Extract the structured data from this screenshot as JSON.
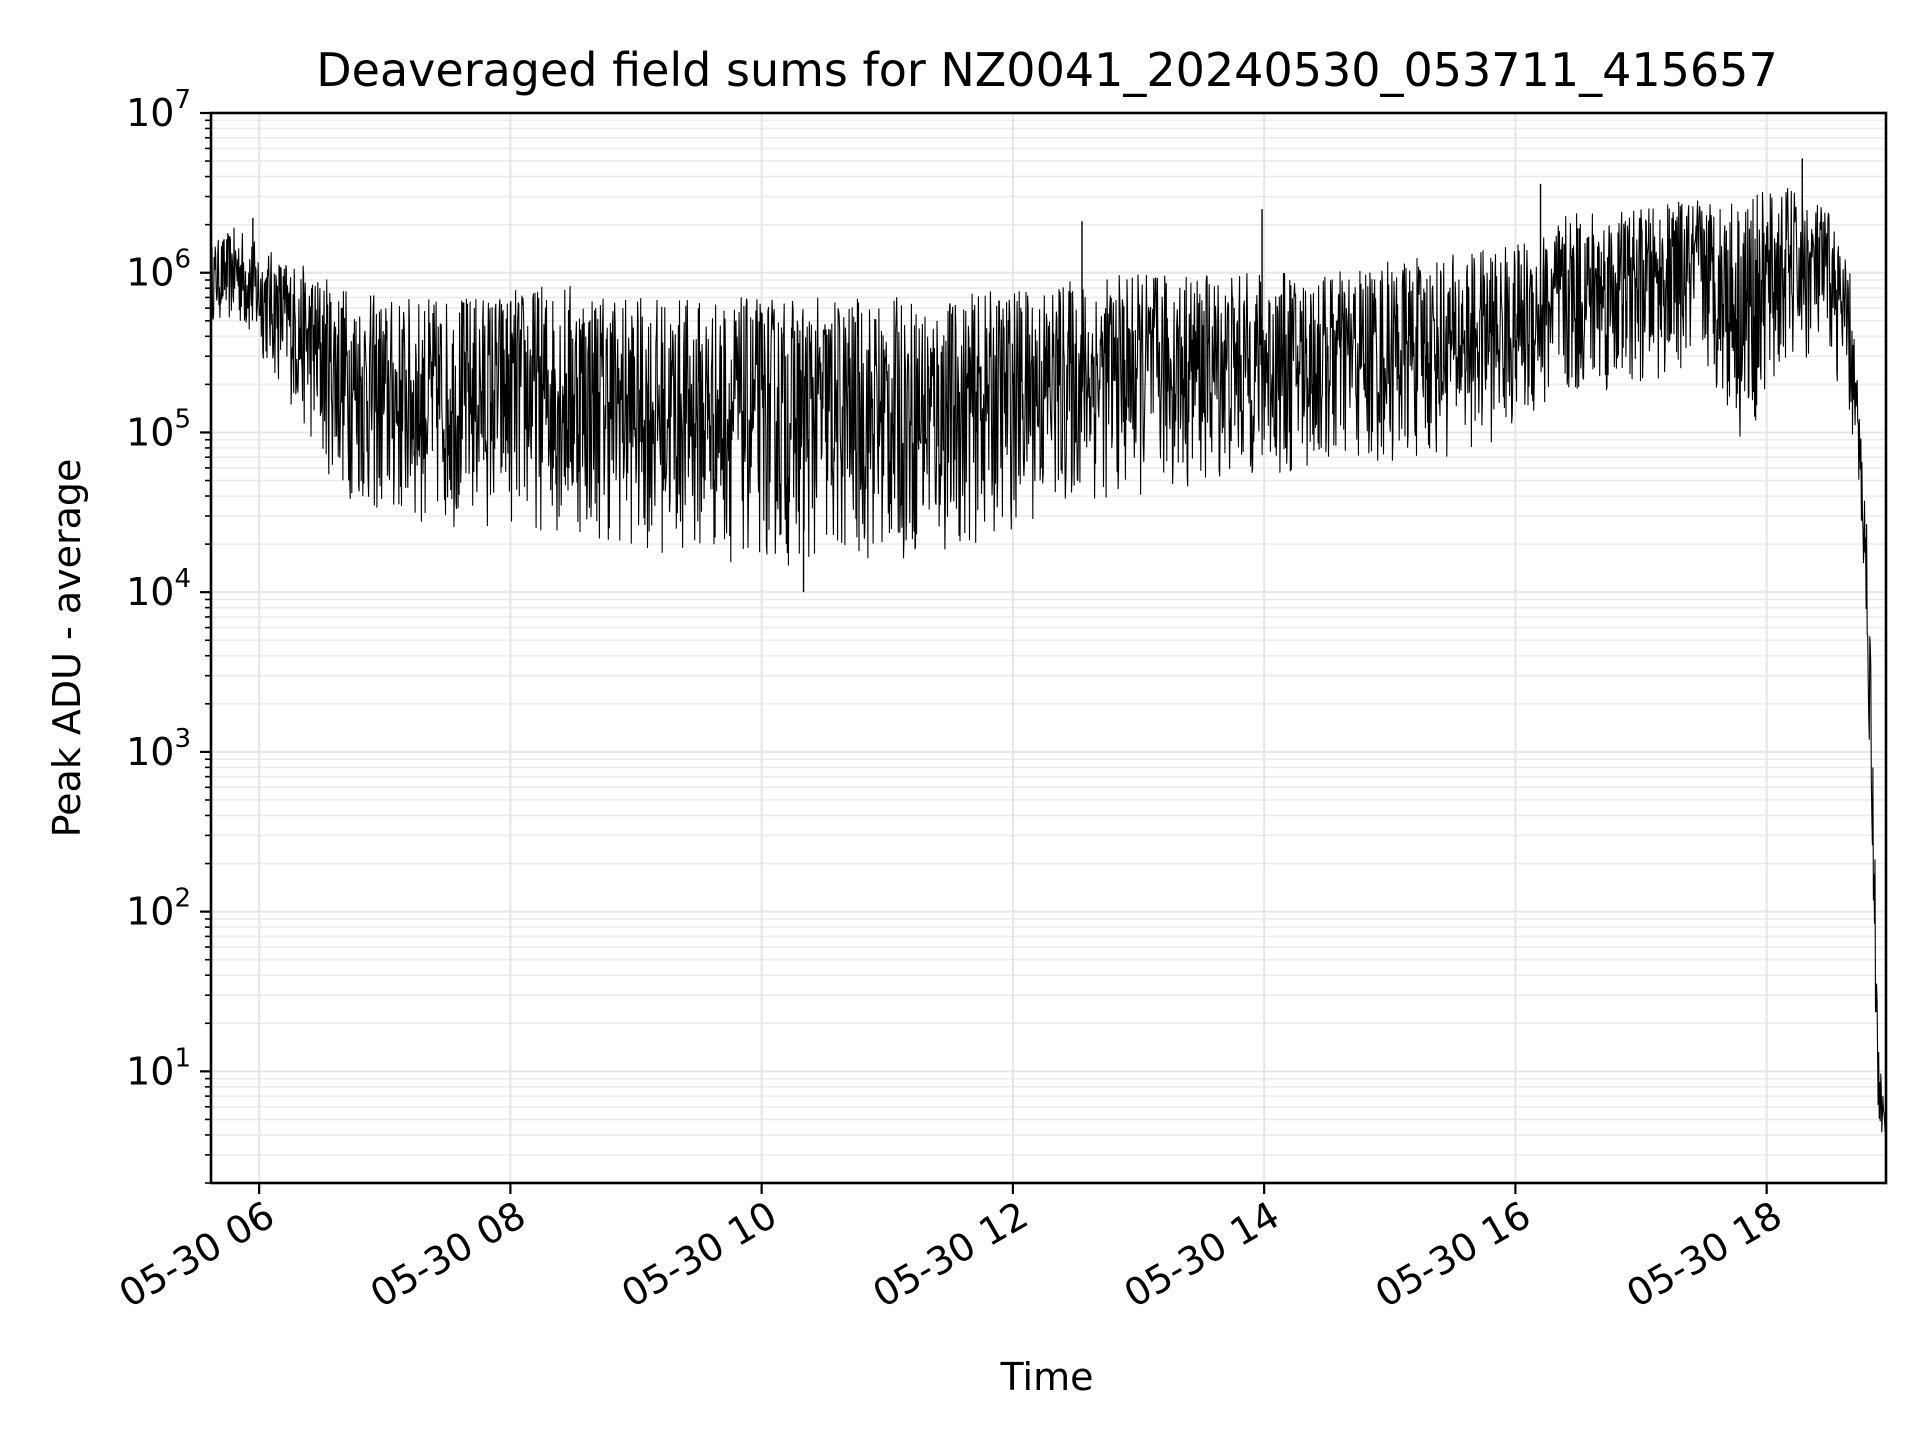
{
  "chart_data": {
    "type": "line",
    "title": "Deaveraged field sums for NZ0041_20240530_053711_415657",
    "xlabel": "Time",
    "ylabel": "Peak ADU - average",
    "yscale": "log",
    "ylim": [
      2,
      10000000
    ],
    "xlim": [
      "2024-05-30 05:37",
      "2024-05-30 18:57"
    ],
    "grid": true,
    "line_color": "#000000",
    "x_ticks": [
      {
        "value": "2024-05-30 06:00",
        "label": "05-30 06"
      },
      {
        "value": "2024-05-30 08:00",
        "label": "05-30 08"
      },
      {
        "value": "2024-05-30 10:00",
        "label": "05-30 10"
      },
      {
        "value": "2024-05-30 12:00",
        "label": "05-30 12"
      },
      {
        "value": "2024-05-30 14:00",
        "label": "05-30 14"
      },
      {
        "value": "2024-05-30 16:00",
        "label": "05-30 16"
      },
      {
        "value": "2024-05-30 18:00",
        "label": "05-30 18"
      }
    ],
    "y_ticks": [
      {
        "value": 10,
        "base": "10",
        "exp": "1"
      },
      {
        "value": 100,
        "base": "10",
        "exp": "2"
      },
      {
        "value": 1000,
        "base": "10",
        "exp": "3"
      },
      {
        "value": 10000,
        "base": "10",
        "exp": "4"
      },
      {
        "value": 100000,
        "base": "10",
        "exp": "5"
      },
      {
        "value": 1000000,
        "base": "10",
        "exp": "6"
      },
      {
        "value": 10000000,
        "base": "10",
        "exp": "7"
      }
    ],
    "series": [
      {
        "style": "noisy envelope (approximate)",
        "points": [
          {
            "x": "2024-05-30 05:37",
            "low": 500000,
            "high": 1500000
          },
          {
            "x": "2024-05-30 05:50",
            "low": 450000,
            "high": 2000000
          },
          {
            "x": "2024-05-30 06:00",
            "low": 300000,
            "high": 1500000
          },
          {
            "x": "2024-05-30 06:15",
            "low": 150000,
            "high": 1200000
          },
          {
            "x": "2024-05-30 06:30",
            "low": 60000,
            "high": 1000000
          },
          {
            "x": "2024-05-30 06:45",
            "low": 35000,
            "high": 800000
          },
          {
            "x": "2024-05-30 07:00",
            "low": 25000,
            "high": 700000
          },
          {
            "x": "2024-05-30 07:30",
            "low": 25000,
            "high": 700000
          },
          {
            "x": "2024-05-30 08:00",
            "low": 25000,
            "high": 800000
          },
          {
            "x": "2024-05-30 08:30",
            "low": 22000,
            "high": 900000
          },
          {
            "x": "2024-05-30 09:00",
            "low": 18000,
            "high": 700000
          },
          {
            "x": "2024-05-30 09:30",
            "low": 16000,
            "high": 700000
          },
          {
            "x": "2024-05-30 10:00",
            "low": 15000,
            "high": 700000
          },
          {
            "x": "2024-05-30 10:30",
            "low": 14000,
            "high": 700000
          },
          {
            "x": "2024-05-30 11:00",
            "low": 15000,
            "high": 700000
          },
          {
            "x": "2024-05-30 11:30",
            "low": 17000,
            "high": 700000
          },
          {
            "x": "2024-05-30 12:00",
            "low": 25000,
            "high": 800000
          },
          {
            "x": "2024-05-30 12:30",
            "low": 35000,
            "high": 900000
          },
          {
            "x": "2024-05-30 13:00",
            "low": 40000,
            "high": 1000000
          },
          {
            "x": "2024-05-30 13:30",
            "low": 45000,
            "high": 1000000
          },
          {
            "x": "2024-05-30 14:00",
            "low": 50000,
            "high": 1000000
          },
          {
            "x": "2024-05-30 14:30",
            "low": 55000,
            "high": 1000000
          },
          {
            "x": "2024-05-30 15:00",
            "low": 60000,
            "high": 1200000
          },
          {
            "x": "2024-05-30 15:30",
            "low": 70000,
            "high": 1300000
          },
          {
            "x": "2024-05-30 16:00",
            "low": 100000,
            "high": 1500000
          },
          {
            "x": "2024-05-30 16:30",
            "low": 150000,
            "high": 2500000
          },
          {
            "x": "2024-05-30 17:00",
            "low": 200000,
            "high": 2500000
          },
          {
            "x": "2024-05-30 17:30",
            "low": 250000,
            "high": 3000000
          },
          {
            "x": "2024-05-30 17:50",
            "low": 80000,
            "high": 3000000
          },
          {
            "x": "2024-05-30 18:10",
            "low": 250000,
            "high": 3500000
          },
          {
            "x": "2024-05-30 18:30",
            "low": 300000,
            "high": 2500000
          },
          {
            "x": "2024-05-30 18:40",
            "low": 100000,
            "high": 1000000
          },
          {
            "x": "2024-05-30 18:45",
            "low": 30000,
            "high": 100000
          },
          {
            "x": "2024-05-30 18:48",
            "low": 3000,
            "high": 30000
          },
          {
            "x": "2024-05-30 18:51",
            "low": 100,
            "high": 1000
          },
          {
            "x": "2024-05-30 18:53",
            "low": 4,
            "high": 20
          },
          {
            "x": "2024-05-30 18:57",
            "low": 4,
            "high": 4
          }
        ]
      }
    ],
    "peaks": [
      {
        "x": "2024-05-30 05:57",
        "y": 2200000
      },
      {
        "x": "2024-05-30 12:33",
        "y": 2100000
      },
      {
        "x": "2024-05-30 13:59",
        "y": 2500000
      },
      {
        "x": "2024-05-30 16:12",
        "y": 3600000
      },
      {
        "x": "2024-05-30 18:17",
        "y": 5200000
      },
      {
        "x": "2024-05-30 10:20",
        "y": 10000
      }
    ]
  }
}
